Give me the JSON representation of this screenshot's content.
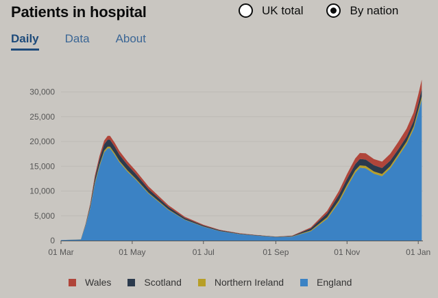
{
  "header": {
    "title": "Patients in hospital",
    "radio_options": [
      {
        "label": "UK total",
        "selected": false
      },
      {
        "label": "By nation",
        "selected": true
      }
    ]
  },
  "tabs": [
    {
      "label": "Daily",
      "active": true
    },
    {
      "label": "Data",
      "active": false
    },
    {
      "label": "About",
      "active": false
    }
  ],
  "chart_data": {
    "type": "area",
    "stacked": true,
    "title": "",
    "xlabel": "",
    "ylabel": "",
    "ylim": [
      0,
      32000
    ],
    "grid": true,
    "legend_position": "bottom",
    "x_ticks": [
      "01 Mar",
      "01 May",
      "01 Jul",
      "01 Sep",
      "01 Nov",
      "01 Jan"
    ],
    "y_ticks": [
      "0",
      "5,000",
      "10,000",
      "15,000",
      "20,000",
      "25,000",
      "30,000"
    ],
    "x": [
      "2020-03-01",
      "2020-03-18",
      "2020-03-22",
      "2020-03-26",
      "2020-03-30",
      "2020-04-03",
      "2020-04-07",
      "2020-04-10",
      "2020-04-12",
      "2020-04-16",
      "2020-04-20",
      "2020-04-27",
      "2020-05-04",
      "2020-05-15",
      "2020-06-01",
      "2020-06-15",
      "2020-07-01",
      "2020-07-15",
      "2020-08-01",
      "2020-08-15",
      "2020-09-01",
      "2020-09-15",
      "2020-10-01",
      "2020-10-15",
      "2020-10-25",
      "2020-11-01",
      "2020-11-08",
      "2020-11-12",
      "2020-11-17",
      "2020-11-24",
      "2020-12-01",
      "2020-12-08",
      "2020-12-15",
      "2020-12-22",
      "2020-12-28",
      "2021-01-01",
      "2021-01-04"
    ],
    "series": [
      {
        "name": "England",
        "color": "#3b82c4",
        "values": [
          100,
          200,
          3000,
          6500,
          11500,
          15000,
          17800,
          18600,
          18600,
          17300,
          15800,
          13900,
          12300,
          9500,
          6200,
          4200,
          2800,
          1900,
          1300,
          1000,
          700,
          800,
          1900,
          4400,
          7700,
          10800,
          13700,
          14700,
          14600,
          13500,
          13000,
          14600,
          17000,
          19500,
          22500,
          25800,
          28500
        ]
      },
      {
        "name": "Northern Ireland",
        "color": "#b79f27",
        "values": [
          0,
          10,
          100,
          200,
          300,
          350,
          350,
          350,
          350,
          320,
          280,
          250,
          220,
          170,
          100,
          60,
          40,
          30,
          20,
          20,
          20,
          40,
          150,
          300,
          400,
          450,
          460,
          470,
          460,
          450,
          430,
          420,
          450,
          480,
          520,
          560,
          600
        ]
      },
      {
        "name": "Scotland",
        "color": "#2b3a4d",
        "values": [
          0,
          30,
          150,
          400,
          800,
          1100,
          1300,
          1400,
          1400,
          1350,
          1250,
          1100,
          950,
          750,
          500,
          300,
          200,
          150,
          100,
          80,
          60,
          100,
          400,
          800,
          1100,
          1200,
          1250,
          1300,
          1300,
          1250,
          1200,
          1100,
          1000,
          1000,
          1100,
          1300,
          1500
        ]
      },
      {
        "name": "Wales",
        "color": "#b0453a",
        "values": [
          0,
          10,
          100,
          300,
          500,
          650,
          750,
          800,
          800,
          780,
          750,
          700,
          650,
          500,
          350,
          250,
          150,
          100,
          70,
          50,
          40,
          60,
          200,
          500,
          800,
          1000,
          1150,
          1200,
          1250,
          1250,
          1300,
          1400,
          1500,
          1600,
          1700,
          1800,
          1900
        ]
      }
    ]
  },
  "legend": [
    {
      "label": "Wales",
      "color": "#b0453a"
    },
    {
      "label": "Scotland",
      "color": "#2b3a4d"
    },
    {
      "label": "Northern Ireland",
      "color": "#b79f27"
    },
    {
      "label": "England",
      "color": "#3b82c4"
    }
  ]
}
